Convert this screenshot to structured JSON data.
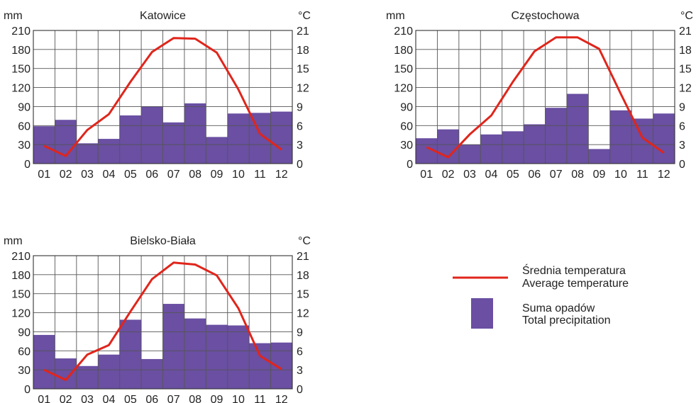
{
  "colors": {
    "bar_fill": "#6a4fa2",
    "temp_line": "#e0251b",
    "grid": "#555555",
    "text": "#222222",
    "legend_secondary_text": "#8a8a8a"
  },
  "legend": {
    "temperature_label_pl": "Średnia temperatura",
    "temperature_label_en": "Average temperature",
    "precipitation_label_pl": "Suma opadów",
    "precipitation_label_en": "Total precipitation"
  },
  "chart_data": [
    {
      "type": "bar",
      "title": "Katowice",
      "left_unit": "mm",
      "right_unit": "°C",
      "categories": [
        "01",
        "02",
        "03",
        "04",
        "05",
        "06",
        "07",
        "08",
        "09",
        "10",
        "11",
        "12"
      ],
      "y_left_ticks": [
        "0",
        "30",
        "60",
        "90",
        "120",
        "150",
        "180",
        "210"
      ],
      "y_right_ticks": [
        "0",
        "3",
        "6",
        "9",
        "12",
        "15",
        "18",
        "21"
      ],
      "ylim_left": [
        0,
        210
      ],
      "ylim_right": [
        0,
        21
      ],
      "grid": true,
      "series": [
        {
          "name": "Suma opadów",
          "kind": "bar",
          "axis": "left",
          "values": [
            59,
            69,
            32,
            39,
            76,
            90,
            65,
            95,
            42,
            79,
            80,
            82
          ]
        },
        {
          "name": "Średnia temperatura",
          "kind": "line",
          "axis": "right",
          "values": [
            2.8,
            1.2,
            5.3,
            7.8,
            12.9,
            17.6,
            19.8,
            19.7,
            17.5,
            11.7,
            4.7,
            2.2
          ]
        }
      ]
    },
    {
      "type": "bar",
      "title": "Częstochowa",
      "left_unit": "mm",
      "right_unit": "°C",
      "categories": [
        "01",
        "02",
        "03",
        "04",
        "05",
        "06",
        "07",
        "08",
        "09",
        "10",
        "11",
        "12"
      ],
      "y_left_ticks": [
        "0",
        "30",
        "60",
        "90",
        "120",
        "150",
        "180",
        "210"
      ],
      "y_right_ticks": [
        "0",
        "3",
        "6",
        "9",
        "12",
        "15",
        "18",
        "21"
      ],
      "ylim_left": [
        0,
        210
      ],
      "ylim_right": [
        0,
        21
      ],
      "grid": true,
      "series": [
        {
          "name": "Suma opadów",
          "kind": "bar",
          "axis": "left",
          "values": [
            40,
            54,
            30,
            46,
            51,
            62,
            88,
            110,
            23,
            84,
            71,
            79
          ]
        },
        {
          "name": "Średnia temperatura",
          "kind": "line",
          "axis": "right",
          "values": [
            2.6,
            1.0,
            4.6,
            7.6,
            12.9,
            17.7,
            19.9,
            19.9,
            18.1,
            11.0,
            4.1,
            1.7
          ]
        }
      ]
    },
    {
      "type": "bar",
      "title": "Bielsko-Biała",
      "left_unit": "mm",
      "right_unit": "°C",
      "categories": [
        "01",
        "02",
        "03",
        "04",
        "05",
        "06",
        "07",
        "08",
        "09",
        "10",
        "11",
        "12"
      ],
      "y_left_ticks": [
        "0",
        "30",
        "60",
        "90",
        "120",
        "150",
        "180",
        "210"
      ],
      "y_right_ticks": [
        "0",
        "3",
        "6",
        "9",
        "12",
        "15",
        "18",
        "21"
      ],
      "ylim_left": [
        0,
        210
      ],
      "ylim_right": [
        0,
        21
      ],
      "grid": true,
      "series": [
        {
          "name": "Suma opadów",
          "kind": "bar",
          "axis": "left",
          "values": [
            85,
            48,
            36,
            54,
            109,
            47,
            134,
            111,
            101,
            100,
            72,
            73
          ]
        },
        {
          "name": "Średnia temperatura",
          "kind": "line",
          "axis": "right",
          "values": [
            3.0,
            1.4,
            5.4,
            6.9,
            12.2,
            17.3,
            19.9,
            19.6,
            17.9,
            12.7,
            5.2,
            3.1
          ]
        }
      ]
    }
  ]
}
